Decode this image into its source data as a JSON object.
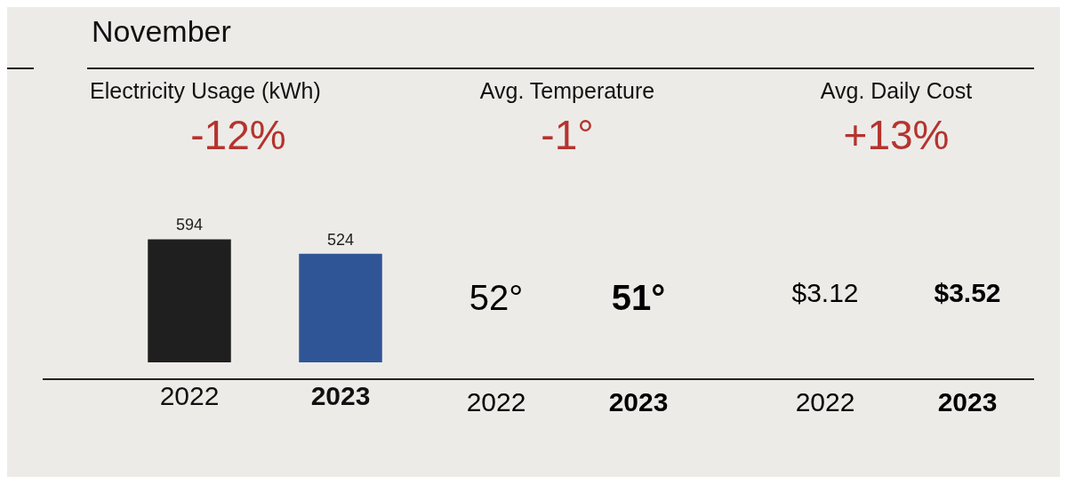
{
  "chart_data": [
    {
      "type": "bar",
      "title": "Electricity Usage (kWh)",
      "subtitle": "-12%",
      "annotations": [
        "November"
      ],
      "categories": [
        "2022",
        "2023"
      ],
      "values": [
        594,
        524
      ],
      "colors": [
        "#1f1f1f",
        "#2f5597"
      ],
      "data_labels": true,
      "grid": false,
      "legend": false
    },
    {
      "type": "other",
      "title": "Avg. Temperature",
      "subtitle": "-1°",
      "categories": [
        "2022",
        "2023"
      ],
      "value_labels": [
        "52°",
        "51°"
      ]
    },
    {
      "type": "other",
      "title": "Avg. Daily Cost",
      "subtitle": "+13%",
      "categories": [
        "2022",
        "2023"
      ],
      "value_labels": [
        "$3.12",
        "$3.52"
      ]
    }
  ]
}
